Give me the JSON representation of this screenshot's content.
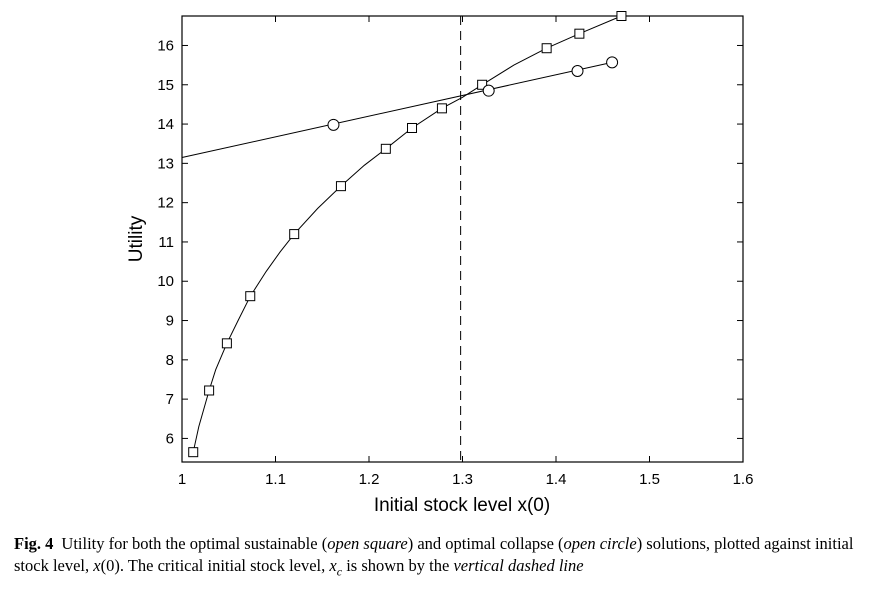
{
  "chart_data": {
    "type": "line",
    "title": "",
    "xlabel": "Initial stock level x(0)",
    "ylabel": "Utility",
    "xlim": [
      1,
      1.6
    ],
    "ylim": [
      5.4,
      16.75
    ],
    "xticks": [
      1,
      1.1,
      1.2,
      1.3,
      1.4,
      1.5,
      1.6
    ],
    "xtick_labels": [
      "1",
      "1.1",
      "1.2",
      "1.3",
      "1.4",
      "1.5",
      "1.6"
    ],
    "yticks": [
      6,
      7,
      8,
      9,
      10,
      11,
      12,
      13,
      14,
      15,
      16
    ],
    "ytick_labels": [
      "6",
      "7",
      "8",
      "9",
      "10",
      "11",
      "12",
      "13",
      "14",
      "15",
      "16"
    ],
    "grid": false,
    "legend": "none",
    "critical_x": 1.298,
    "series": [
      {
        "marker": "square",
        "curve_x": [
          1.012,
          1.018,
          1.024,
          1.029,
          1.036,
          1.048,
          1.06,
          1.073,
          1.09,
          1.105,
          1.12,
          1.145,
          1.17,
          1.195,
          1.218,
          1.246,
          1.278,
          1.3,
          1.321,
          1.355,
          1.39,
          1.425,
          1.47
        ],
        "curve_y": [
          5.65,
          6.3,
          6.8,
          7.22,
          7.75,
          8.42,
          9.0,
          9.62,
          10.25,
          10.75,
          11.2,
          11.85,
          12.42,
          12.95,
          13.37,
          13.9,
          14.4,
          14.68,
          15.0,
          15.5,
          15.93,
          16.3,
          16.75
        ],
        "marker_x": [
          1.012,
          1.029,
          1.048,
          1.073,
          1.12,
          1.17,
          1.218,
          1.246,
          1.278,
          1.321,
          1.39,
          1.425,
          1.47
        ],
        "marker_y": [
          5.65,
          7.22,
          8.42,
          9.62,
          11.2,
          12.42,
          13.37,
          13.9,
          14.4,
          15.0,
          15.93,
          16.3,
          16.75
        ]
      },
      {
        "marker": "circle",
        "curve_x": [
          1.0,
          1.46
        ],
        "curve_y": [
          13.15,
          15.57
        ],
        "marker_x": [
          1.162,
          1.328,
          1.423,
          1.46
        ],
        "marker_y": [
          13.98,
          14.85,
          15.35,
          15.57
        ]
      }
    ]
  },
  "caption": {
    "label": "Fig. 4",
    "segments": [
      {
        "text": "Utility for both the optimal sustainable (",
        "italic": false
      },
      {
        "text": "open square",
        "italic": true
      },
      {
        "text": ") and optimal collapse (",
        "italic": false
      },
      {
        "text": "open circle",
        "italic": true
      },
      {
        "text": ") solutions, plotted against initial stock level, ",
        "italic": false
      },
      {
        "text": "x",
        "italic": true
      },
      {
        "text": "(0). The critical initial stock level, ",
        "italic": false
      },
      {
        "text": "x",
        "italic": true
      },
      {
        "text": "c",
        "italic": true,
        "sub": true
      },
      {
        "text": " is shown by the ",
        "italic": false
      },
      {
        "text": "vertical dashed line",
        "italic": true
      }
    ]
  }
}
